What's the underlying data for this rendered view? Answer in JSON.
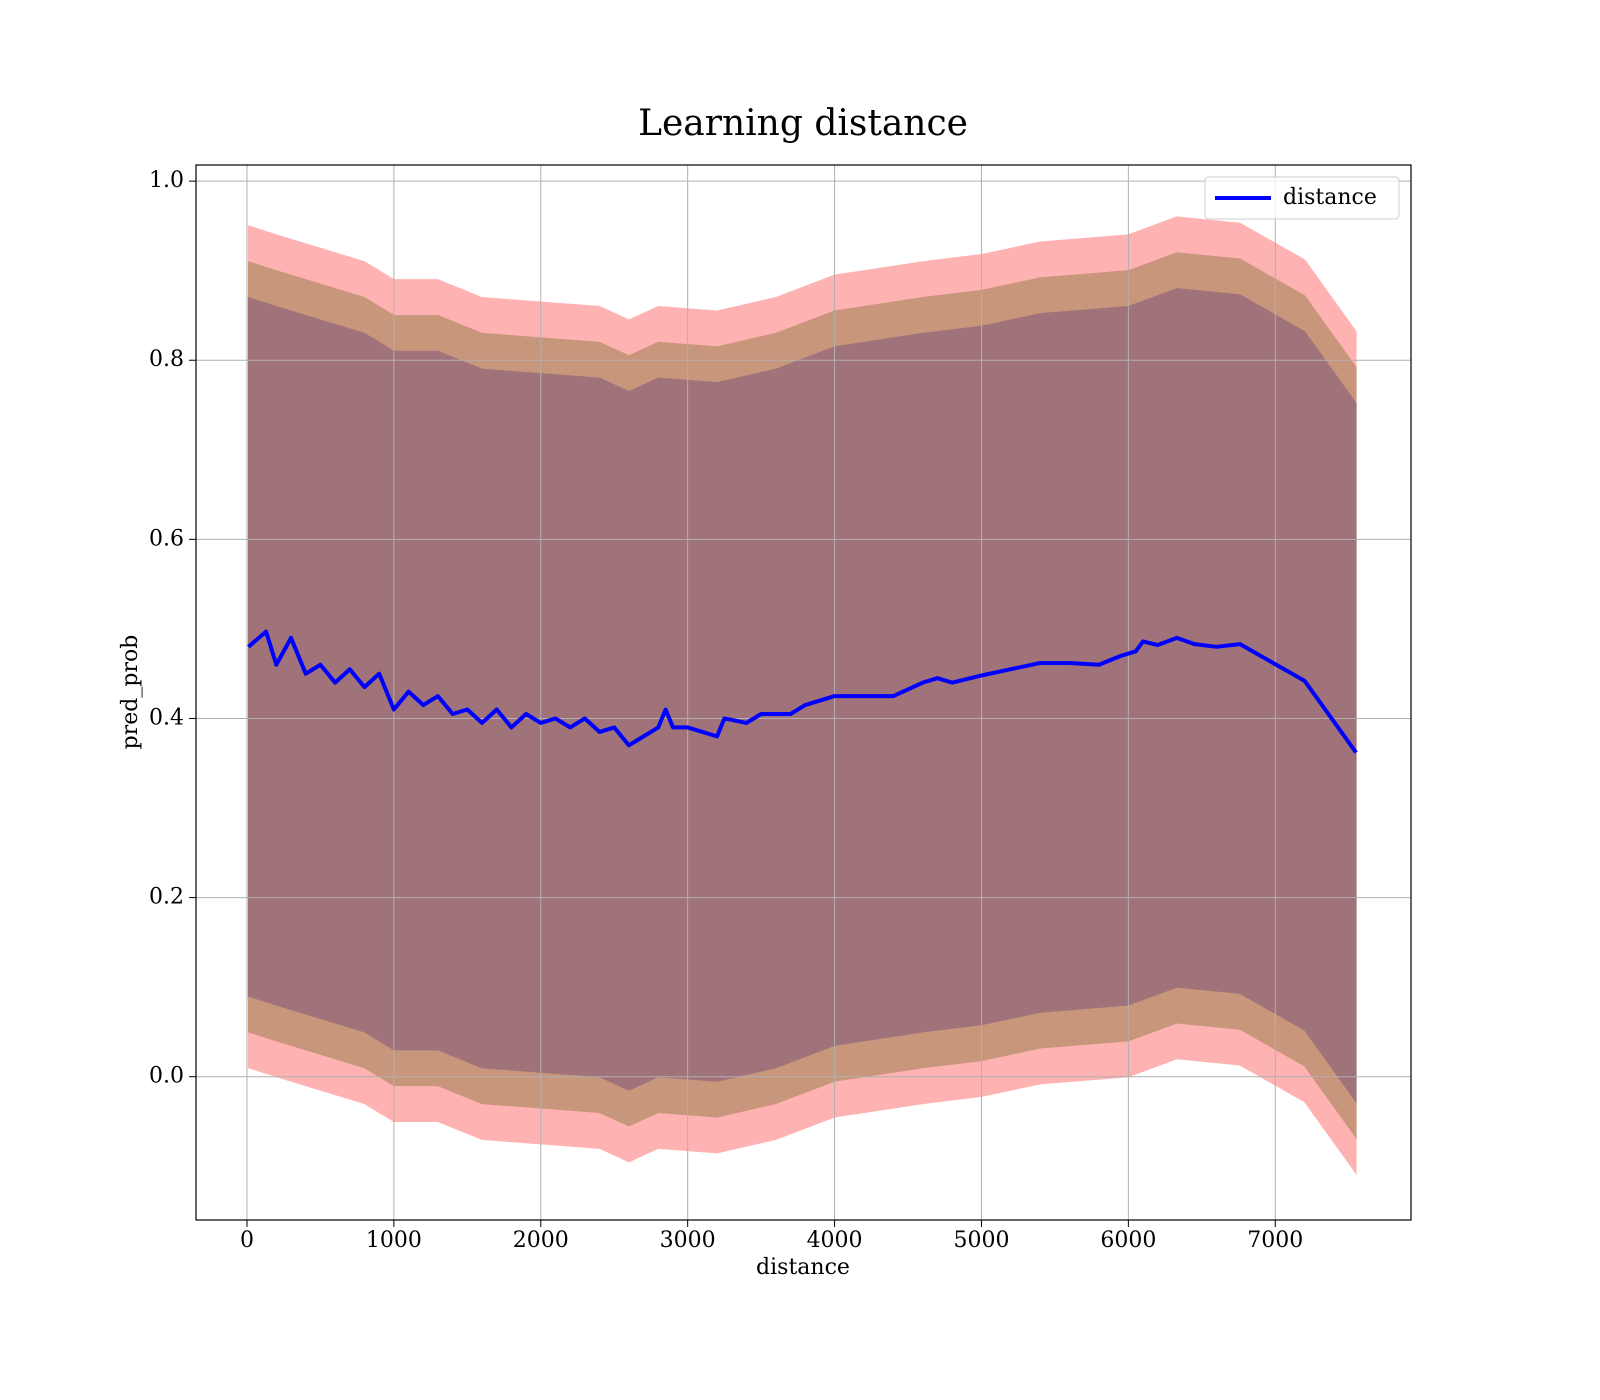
{
  "chart_data": {
    "type": "line",
    "title": "Learning distance",
    "xlabel": "distance",
    "ylabel": "pred_prob",
    "xlim": [
      -347,
      7924
    ],
    "ylim": [
      -0.16,
      1.018
    ],
    "xticks": [
      0,
      1000,
      2000,
      3000,
      4000,
      5000,
      6000,
      7000
    ],
    "yticks": [
      {
        "value": 0,
        "label": "0.0"
      },
      0.2,
      0.4,
      0.6,
      0.8,
      {
        "value": 1,
        "label": "1.0"
      }
    ],
    "grid": true,
    "legend": "upper right",
    "x": [
      10,
      130,
      200,
      300,
      400,
      500,
      600,
      700,
      800,
      900,
      1000,
      1100,
      1200,
      1300,
      1400,
      1500,
      1600,
      1700,
      1800,
      1900,
      2000,
      2100,
      2200,
      2300,
      2400,
      2500,
      2600,
      2700,
      2800,
      2850,
      2900,
      3000,
      3100,
      3200,
      3250,
      3400,
      3500,
      3700,
      3800,
      4000,
      4200,
      4400,
      4600,
      4700,
      4800,
      5000,
      5200,
      5400,
      5600,
      5800,
      5950,
      6050,
      6100,
      6200,
      6330,
      6450,
      6600,
      6760,
      7200,
      7550
    ],
    "series": [
      {
        "name": "distance",
        "color": "#0000ff",
        "values": [
          0.48,
          0.497,
          0.46,
          0.49,
          0.45,
          0.46,
          0.44,
          0.455,
          0.435,
          0.45,
          0.41,
          0.43,
          0.415,
          0.425,
          0.405,
          0.41,
          0.395,
          0.41,
          0.39,
          0.405,
          0.395,
          0.4,
          0.39,
          0.4,
          0.385,
          0.39,
          0.37,
          0.38,
          0.39,
          0.41,
          0.39,
          0.39,
          0.385,
          0.38,
          0.4,
          0.395,
          0.405,
          0.405,
          0.415,
          0.425,
          0.425,
          0.425,
          0.44,
          0.445,
          0.44,
          0.448,
          0.455,
          0.462,
          0.462,
          0.46,
          0.47,
          0.475,
          0.486,
          0.482,
          0.49,
          0.483,
          0.48,
          0.483,
          0.442,
          0.362
        ]
      }
    ],
    "bands": [
      {
        "color": "#ffb2b2",
        "x": [
          10,
          200,
          500,
          800,
          1000,
          1300,
          1600,
          2000,
          2400,
          2600,
          2800,
          3200,
          3600,
          4000,
          4600,
          5000,
          5400,
          6000,
          6330,
          6760,
          7200,
          7550
        ],
        "upper": [
          0.95,
          0.94,
          0.925,
          0.91,
          0.89,
          0.89,
          0.87,
          0.865,
          0.86,
          0.845,
          0.86,
          0.855,
          0.87,
          0.895,
          0.91,
          0.918,
          0.932,
          0.94,
          0.96,
          0.953,
          0.912,
          0.832
        ],
        "lower": [
          0.01,
          0,
          -0.015,
          -0.03,
          -0.05,
          -0.05,
          -0.07,
          -0.075,
          -0.08,
          -0.095,
          -0.08,
          -0.085,
          -0.07,
          -0.045,
          -0.03,
          -0.022,
          -0.008,
          0,
          0.02,
          0.013,
          -0.028,
          -0.108
        ]
      },
      {
        "color": "#c8967a",
        "x": [
          10,
          200,
          500,
          800,
          1000,
          1300,
          1600,
          2000,
          2400,
          2600,
          2800,
          3200,
          3600,
          4000,
          4600,
          5000,
          5400,
          6000,
          6330,
          6760,
          7200,
          7550
        ],
        "upper": [
          0.91,
          0.9,
          0.885,
          0.87,
          0.85,
          0.85,
          0.83,
          0.825,
          0.82,
          0.805,
          0.82,
          0.815,
          0.83,
          0.855,
          0.87,
          0.878,
          0.892,
          0.9,
          0.92,
          0.913,
          0.872,
          0.792
        ],
        "lower": [
          0.05,
          0.04,
          0.025,
          0.01,
          -0.01,
          -0.01,
          -0.03,
          -0.035,
          -0.04,
          -0.055,
          -0.04,
          -0.045,
          -0.03,
          -0.005,
          0.01,
          0.018,
          0.032,
          0.04,
          0.06,
          0.053,
          0.012,
          -0.068
        ]
      },
      {
        "color": "#a0727a",
        "x": [
          10,
          200,
          500,
          800,
          1000,
          1300,
          1600,
          2000,
          2400,
          2600,
          2800,
          3200,
          3600,
          4000,
          4600,
          5000,
          5400,
          6000,
          6330,
          6760,
          7200,
          7550
        ],
        "upper": [
          0.87,
          0.86,
          0.845,
          0.83,
          0.81,
          0.81,
          0.79,
          0.785,
          0.78,
          0.765,
          0.78,
          0.775,
          0.79,
          0.815,
          0.83,
          0.838,
          0.852,
          0.86,
          0.88,
          0.873,
          0.832,
          0.752
        ],
        "lower": [
          0.09,
          0.08,
          0.065,
          0.05,
          0.03,
          0.03,
          0.01,
          0.005,
          0,
          -0.015,
          0,
          -0.005,
          0.01,
          0.035,
          0.05,
          0.058,
          0.072,
          0.08,
          0.1,
          0.093,
          0.052,
          -0.028
        ]
      }
    ]
  }
}
